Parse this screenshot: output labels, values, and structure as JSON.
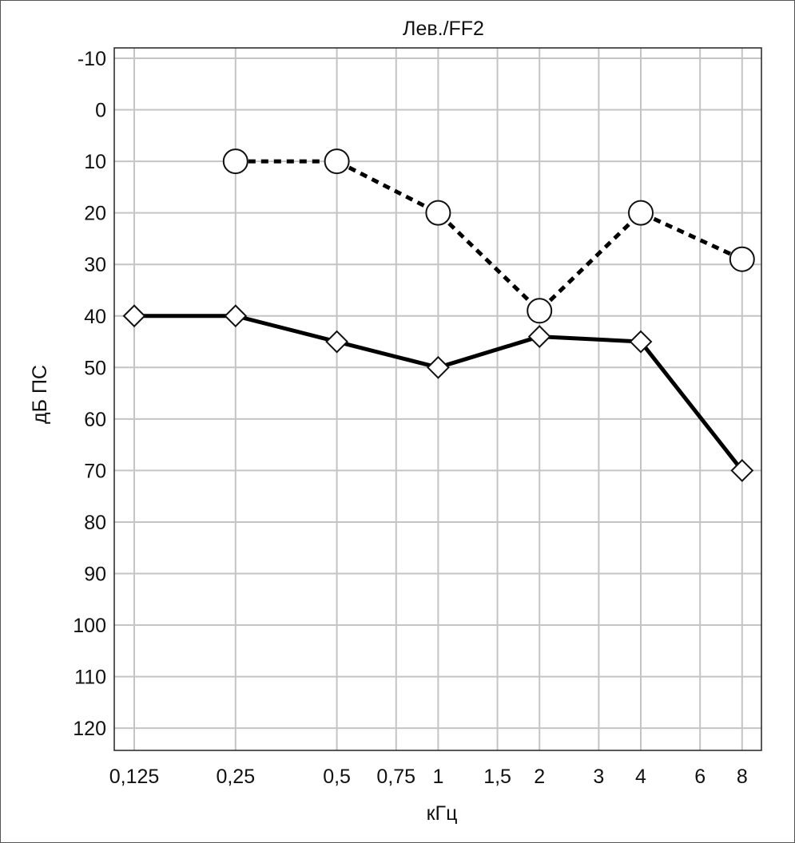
{
  "chart_data": {
    "type": "line",
    "title": "Лев./FF2",
    "xlabel": "кГц",
    "ylabel": "дБ ПС",
    "x_ticks": [
      "0,125",
      "0,25",
      "0,5",
      "0,75",
      "1",
      "1,5",
      "2",
      "3",
      "4",
      "6",
      "8"
    ],
    "x_values": [
      0.125,
      0.25,
      0.5,
      0.75,
      1,
      1.5,
      2,
      3,
      4,
      6,
      8
    ],
    "x_scale": "log2",
    "y_ticks": [
      "-10",
      "0",
      "10",
      "20",
      "30",
      "40",
      "50",
      "60",
      "70",
      "80",
      "90",
      "100",
      "110",
      "120"
    ],
    "ylim": [
      -10,
      120
    ],
    "y_inverted": true,
    "grid": true,
    "series": [
      {
        "marker": "circle",
        "line": "dashed",
        "color": "#000000",
        "points": [
          {
            "x": 0.25,
            "y": 10
          },
          {
            "x": 0.5,
            "y": 10
          },
          {
            "x": 1,
            "y": 20
          },
          {
            "x": 2,
            "y": 39
          },
          {
            "x": 4,
            "y": 20
          },
          {
            "x": 8,
            "y": 29
          }
        ]
      },
      {
        "marker": "diamond",
        "line": "solid",
        "color": "#000000",
        "points": [
          {
            "x": 0.125,
            "y": 40
          },
          {
            "x": 0.25,
            "y": 40
          },
          {
            "x": 0.5,
            "y": 45
          },
          {
            "x": 1,
            "y": 50
          },
          {
            "x": 2,
            "y": 44
          },
          {
            "x": 4,
            "y": 45
          },
          {
            "x": 8,
            "y": 70
          }
        ]
      }
    ]
  }
}
